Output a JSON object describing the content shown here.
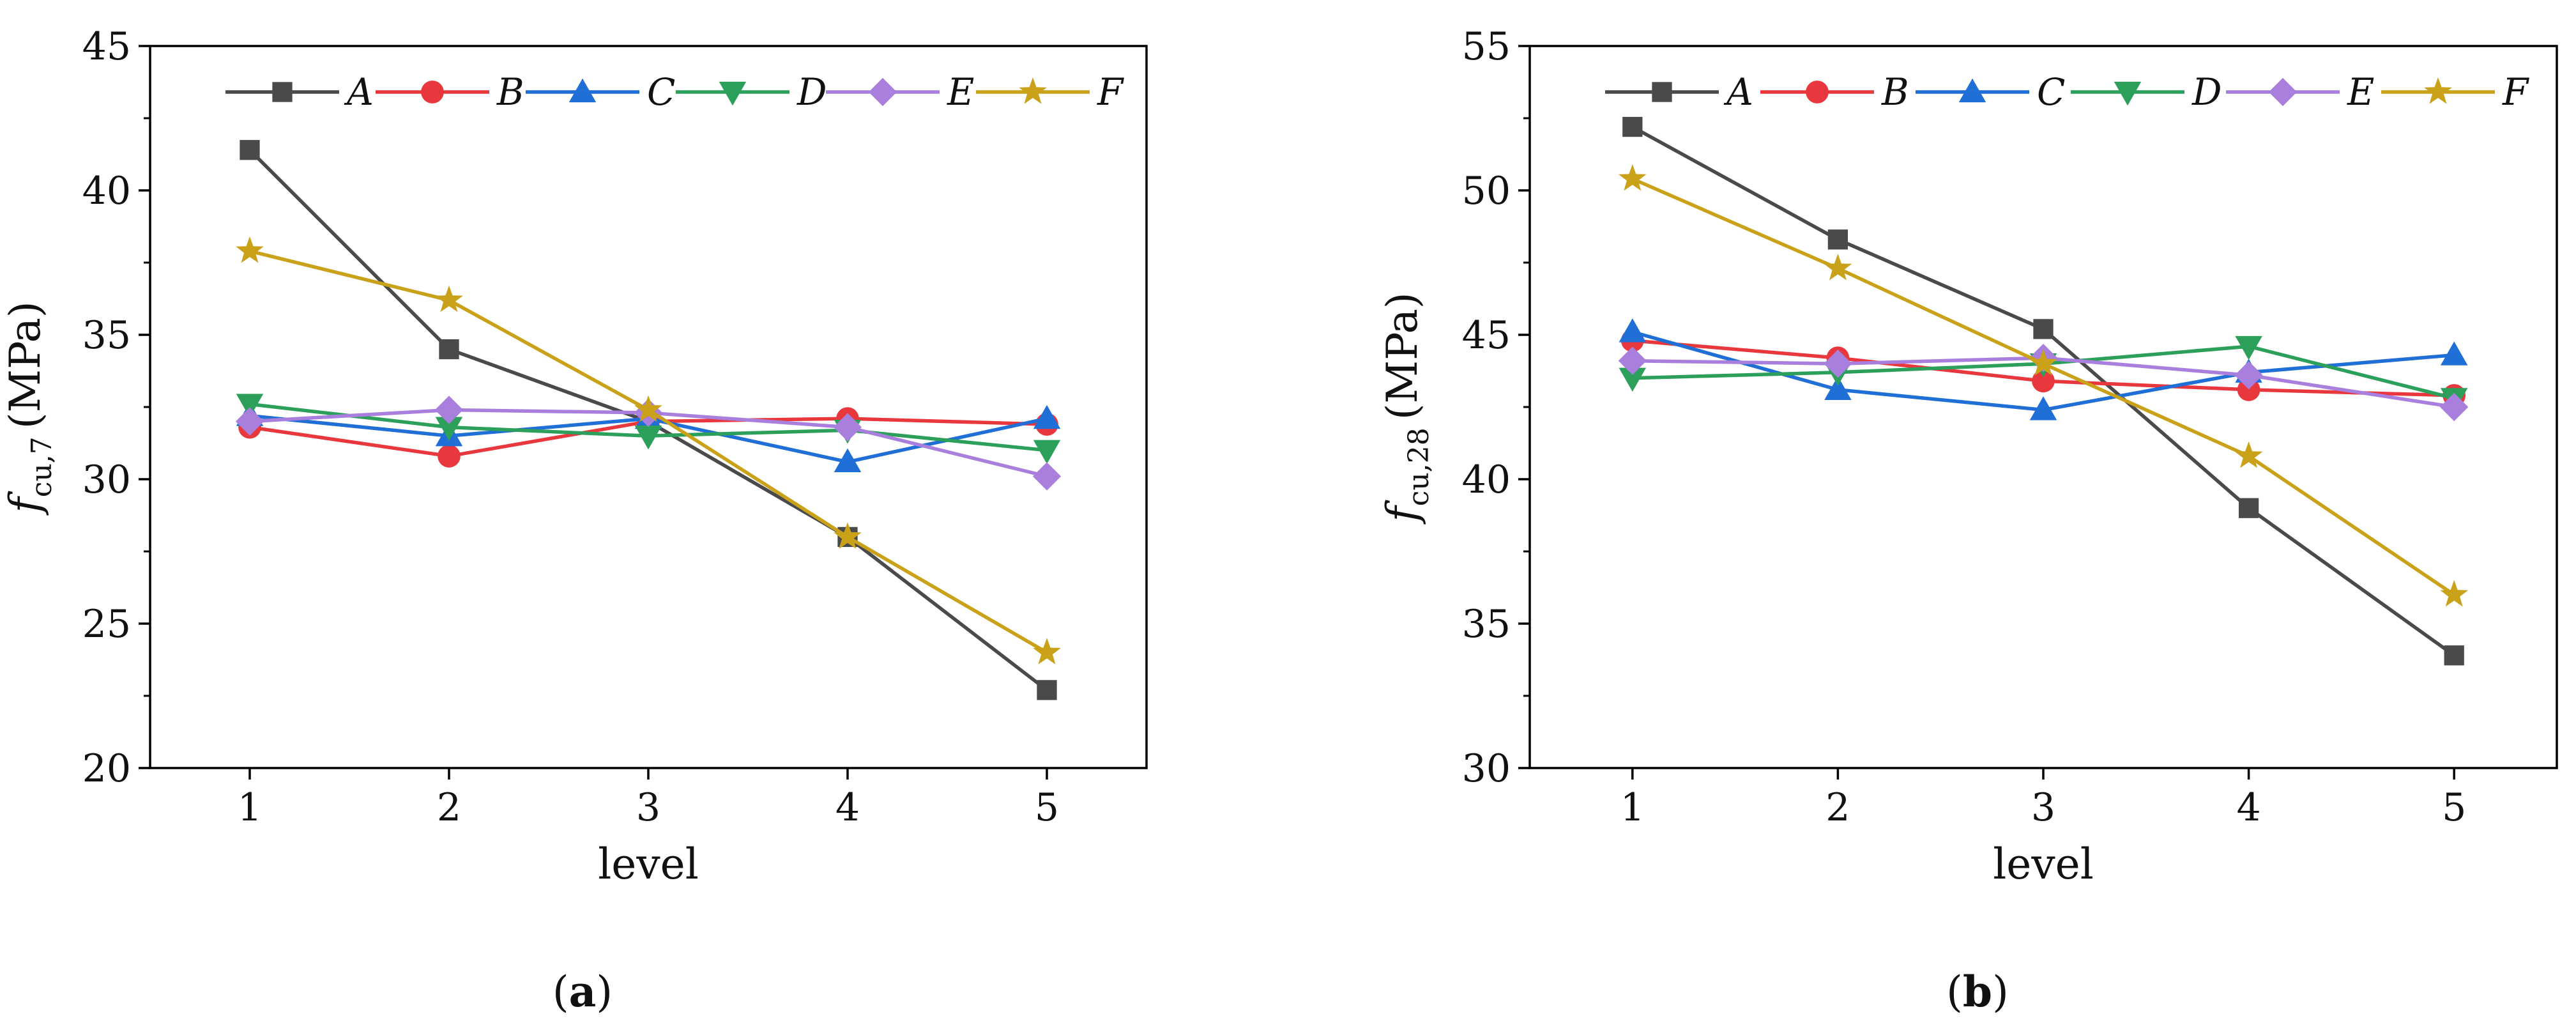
{
  "chart_data": [
    {
      "type": "line",
      "panel_label": "a",
      "xlabel": "level",
      "ylabel": {
        "symbol": "f",
        "subscript": "cu,7",
        "unit": "(MPa)"
      },
      "x": [
        1,
        2,
        3,
        4,
        5
      ],
      "xticks": [
        "1",
        "2",
        "3",
        "4",
        "5"
      ],
      "xlim": [
        0.5,
        5.5
      ],
      "ylim": [
        20,
        45
      ],
      "yticks": [
        "20",
        "25",
        "30",
        "35",
        "40",
        "45"
      ],
      "legend_position": "top",
      "series": [
        {
          "name": "A",
          "color": "#4a4a4a",
          "marker": "square",
          "values": [
            41.4,
            34.5,
            32.0,
            28.0,
            22.7
          ]
        },
        {
          "name": "B",
          "color": "#e8383d",
          "marker": "circle",
          "values": [
            31.8,
            30.8,
            32.0,
            32.1,
            31.9
          ]
        },
        {
          "name": "C",
          "color": "#1f6fd6",
          "marker": "triangle-up",
          "values": [
            32.2,
            31.5,
            32.1,
            30.6,
            32.1
          ]
        },
        {
          "name": "D",
          "color": "#2ca05a",
          "marker": "triangle-down",
          "values": [
            32.6,
            31.8,
            31.5,
            31.7,
            31.0
          ]
        },
        {
          "name": "E",
          "color": "#a97fde",
          "marker": "diamond",
          "values": [
            32.0,
            32.4,
            32.3,
            31.8,
            30.1
          ]
        },
        {
          "name": "F",
          "color": "#c9a21a",
          "marker": "star",
          "values": [
            37.9,
            36.2,
            32.4,
            28.0,
            24.0
          ]
        }
      ]
    },
    {
      "type": "line",
      "panel_label": "b",
      "xlabel": "level",
      "ylabel": {
        "symbol": "f",
        "subscript": "cu,28",
        "unit": "(MPa)"
      },
      "x": [
        1,
        2,
        3,
        4,
        5
      ],
      "xticks": [
        "1",
        "2",
        "3",
        "4",
        "5"
      ],
      "xlim": [
        0.5,
        5.5
      ],
      "ylim": [
        30,
        55
      ],
      "yticks": [
        "30",
        "35",
        "40",
        "45",
        "50",
        "55"
      ],
      "legend_position": "top",
      "series": [
        {
          "name": "A",
          "color": "#4a4a4a",
          "marker": "square",
          "values": [
            52.2,
            48.3,
            45.2,
            39.0,
            33.9
          ]
        },
        {
          "name": "B",
          "color": "#e8383d",
          "marker": "circle",
          "values": [
            44.8,
            44.2,
            43.4,
            43.1,
            42.9
          ]
        },
        {
          "name": "C",
          "color": "#1f6fd6",
          "marker": "triangle-up",
          "values": [
            45.1,
            43.1,
            42.4,
            43.7,
            44.3
          ]
        },
        {
          "name": "D",
          "color": "#2ca05a",
          "marker": "triangle-down",
          "values": [
            43.5,
            43.7,
            44.0,
            44.6,
            42.8
          ]
        },
        {
          "name": "E",
          "color": "#a97fde",
          "marker": "diamond",
          "values": [
            44.1,
            44.0,
            44.2,
            43.6,
            42.5
          ]
        },
        {
          "name": "F",
          "color": "#c9a21a",
          "marker": "star",
          "values": [
            50.4,
            47.3,
            44.0,
            40.8,
            36.0
          ]
        }
      ]
    }
  ]
}
